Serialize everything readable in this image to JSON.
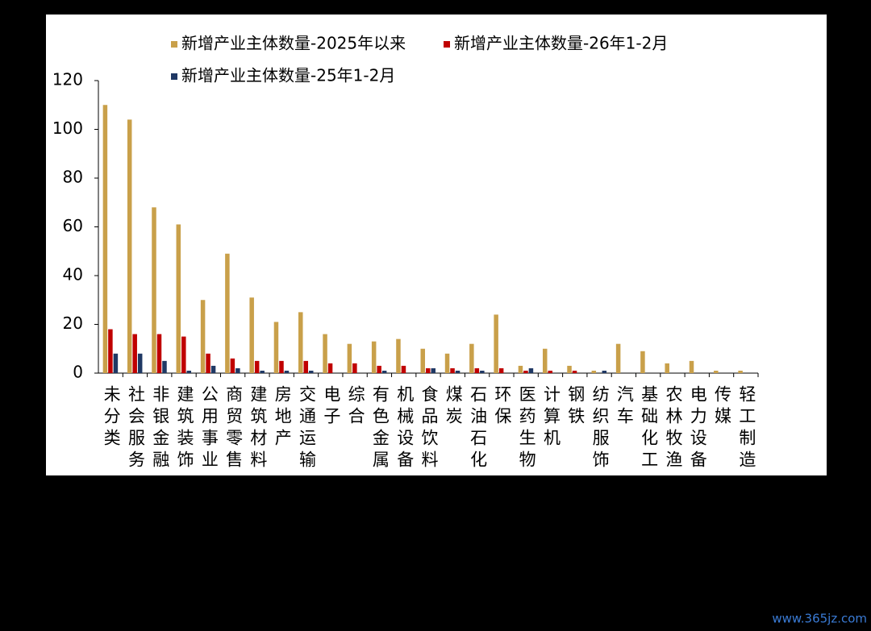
{
  "chart_data": {
    "type": "bar",
    "categories": [
      "未分类",
      "社会服务",
      "非银金融",
      "建筑装饰",
      "公用事业",
      "商贸零售",
      "建筑材料",
      "房地产",
      "交通运输",
      "电子",
      "综合",
      "有色金属",
      "机械设备",
      "食品饮料",
      "煤炭",
      "石油石化",
      "环保",
      "医药生物",
      "计算机",
      "钢铁",
      "纺织服饰",
      "汽车",
      "基础化工",
      "农林牧渔",
      "电力设备",
      "传媒",
      "轻工制造"
    ],
    "series": [
      {
        "name": "新增产业主体数量-2025年以来",
        "color": "#c9a04a",
        "values": [
          110,
          104,
          68,
          61,
          30,
          49,
          31,
          21,
          25,
          16,
          12,
          13,
          14,
          10,
          8,
          12,
          24,
          3,
          10,
          3,
          1,
          12,
          9,
          4,
          5,
          1,
          1
        ]
      },
      {
        "name": "新增产业主体数量-26年1-2月",
        "color": "#c00000",
        "values": [
          18,
          16,
          16,
          15,
          8,
          6,
          5,
          5,
          5,
          4,
          4,
          3,
          3,
          2,
          2,
          2,
          2,
          1,
          1,
          1,
          0,
          0,
          0,
          0,
          0,
          0,
          0
        ]
      },
      {
        "name": "新增产业主体数量-25年1-2月",
        "color": "#1f3864",
        "values": [
          8,
          8,
          5,
          1,
          3,
          2,
          1,
          1,
          1,
          0,
          0,
          1,
          0,
          2,
          1,
          1,
          0,
          2,
          0,
          0,
          1,
          0,
          0,
          0,
          0,
          0,
          0
        ]
      }
    ],
    "ylim": [
      0,
      120
    ],
    "yticks": [
      0,
      20,
      40,
      60,
      80,
      100,
      120
    ],
    "grid": false,
    "watermark": "www.365jz.com"
  }
}
